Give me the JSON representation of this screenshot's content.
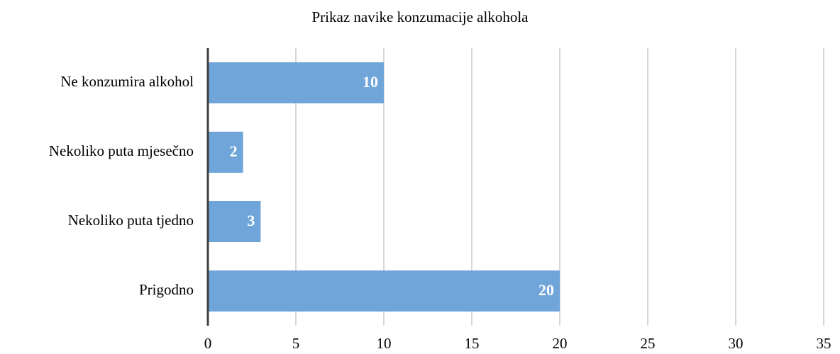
{
  "chart_data": {
    "type": "barh",
    "title": "Prikaz navike konzumacije alkohola",
    "categories": [
      "Ne konzumira alkohol",
      "Nekoliko puta mjesečno",
      "Nekoliko puta tjedno",
      "Prigodno"
    ],
    "values": [
      10,
      2,
      3,
      20
    ],
    "color": "#6fa5d9",
    "xlim": [
      0,
      35
    ],
    "xticks": [
      0,
      5,
      10,
      15,
      20,
      25,
      30,
      35
    ],
    "grid": true
  }
}
